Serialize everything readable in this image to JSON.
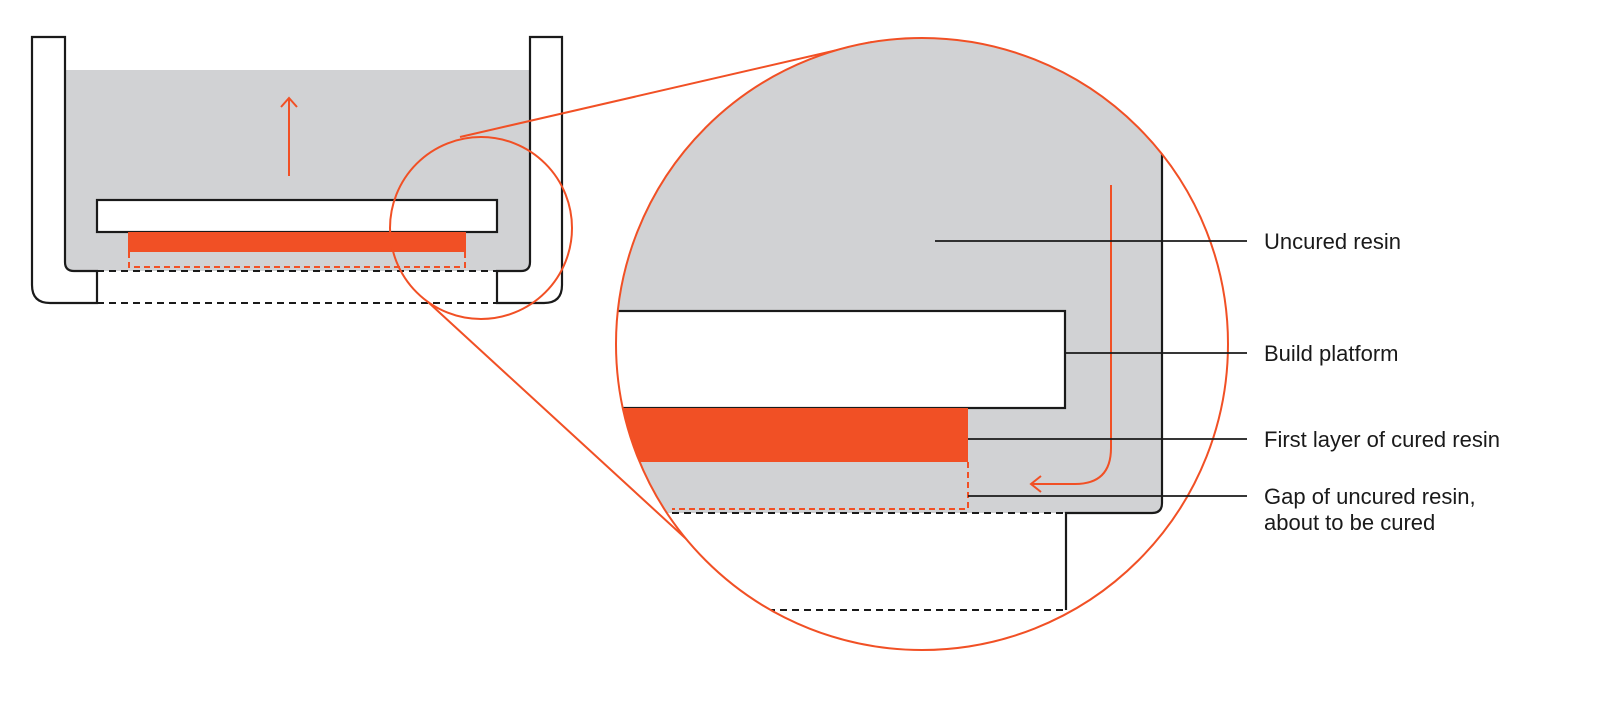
{
  "colors": {
    "resin": "#d1d2d4",
    "cured": "#f15025",
    "accent": "#f15025",
    "line": "#1a1a1a",
    "background": "#ffffff"
  },
  "labels": {
    "uncured_resin": "Uncured resin",
    "build_platform": "Build platform",
    "first_layer": "First layer of cured resin",
    "gap_line1": "Gap of uncured resin,",
    "gap_line2": "about to be cured"
  },
  "icons": {
    "platform_motion": "arrow-up-icon",
    "resin_flow": "arrow-flow-icon"
  }
}
